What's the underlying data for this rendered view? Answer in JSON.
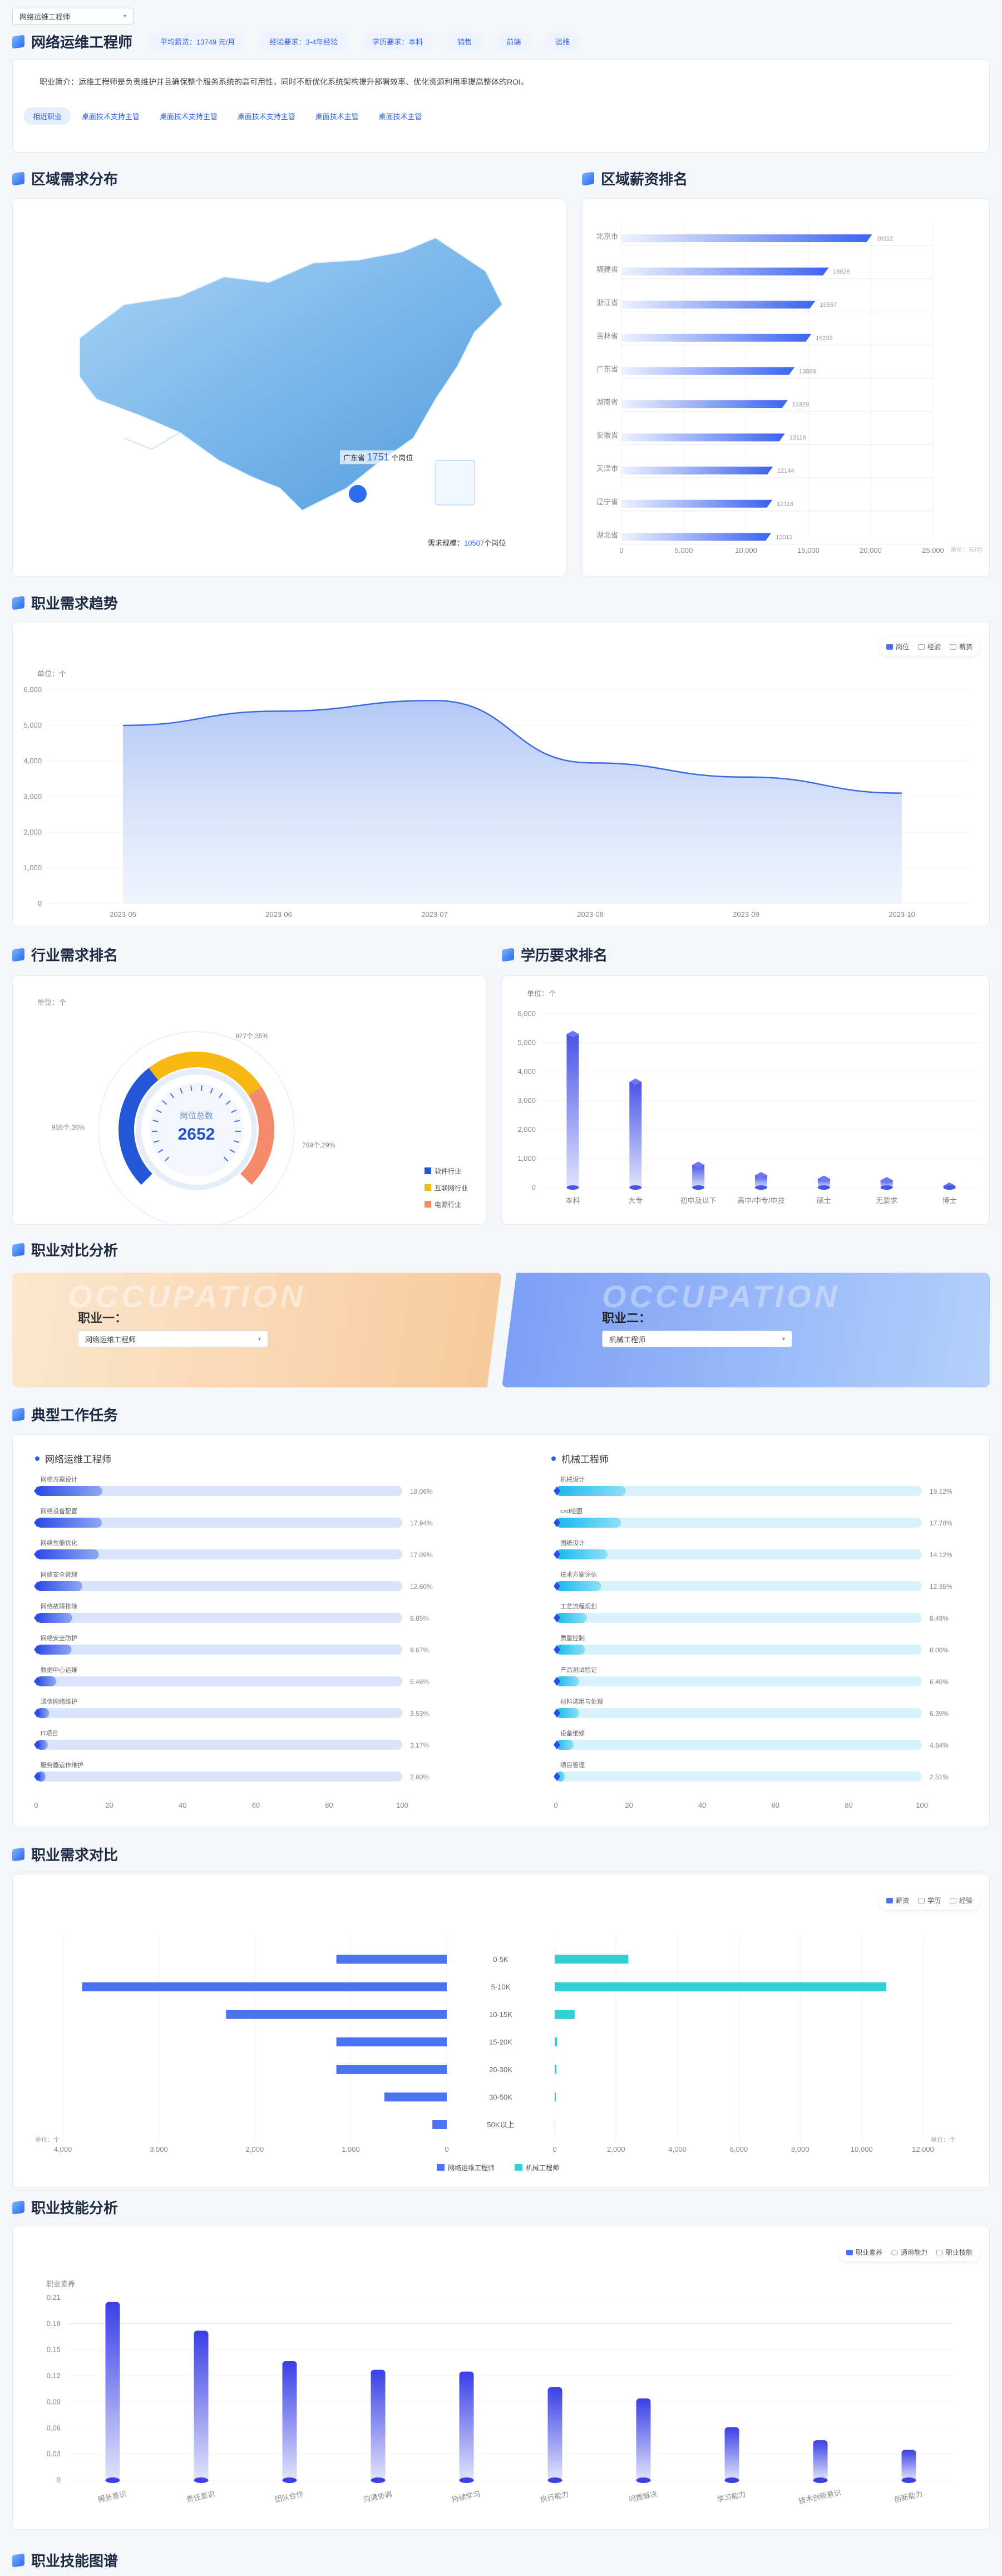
{
  "header": {
    "job_select": "网络运维工程师",
    "title": "网络运维工程师",
    "tags": [
      "平均薪资：13749 元/月",
      "经验要求：3-4年经验",
      "学历要求：本科",
      "销售",
      "前端",
      "运维"
    ],
    "intro": "职业简介：运维工程师是负责维护并且确保整个服务系统的高可用性，同时不断优化系统架构提升部署效率、优化资源利用率提高整体的ROI。",
    "chips": [
      "相近职业",
      "桌面技术支持主管",
      "桌面技术支持主管",
      "桌面技术支持主管",
      "桌面技术主管",
      "桌面技术主管"
    ]
  },
  "region": {
    "title": "区域需求分布",
    "tooltip_prefix": "广东省",
    "tooltip_value": "1751",
    "tooltip_suffix": "个岗位",
    "demand_label": "需求规模：",
    "demand_value": "10507",
    "demand_unit": "个岗位"
  },
  "salary_rank": {
    "title": "区域薪资排名",
    "unit_label": "单位：元/月",
    "chart_data": {
      "type": "bar",
      "categories": [
        "北京市",
        "福建省",
        "浙江省",
        "吉林省",
        "广东省",
        "湖南省",
        "安徽省",
        "天津市",
        "辽宁省",
        "湖北省"
      ],
      "values": [
        20112,
        16626,
        15557,
        15233,
        13888,
        13329,
        13116,
        12144,
        12116,
        12013
      ],
      "xlim": [
        0,
        25000
      ],
      "xticks": [
        "0",
        "5,000",
        "10,000",
        "15,000",
        "20,000",
        "25,000"
      ]
    }
  },
  "trend": {
    "title": "职业需求趋势",
    "unit_label": "单位：个",
    "legend": [
      "岗位",
      "经验",
      "薪资"
    ],
    "chart_data": {
      "type": "area",
      "x": [
        "2023-05",
        "2023-06",
        "2023-07",
        "2023-08",
        "2023-09",
        "2023-10"
      ],
      "values": [
        5000,
        5400,
        5700,
        3950,
        3550,
        3100
      ],
      "ylim": [
        0,
        6000
      ],
      "yticks": [
        "0",
        "1,000",
        "2,000",
        "3,000",
        "4,000",
        "5,000",
        "6,000"
      ]
    }
  },
  "industry": {
    "title": "行业需求排名",
    "unit_label": "单位：个",
    "center_label": "岗位总数",
    "center_value": "2652",
    "callouts": [
      "927个,35%",
      "769个,29%",
      "956个,36%"
    ],
    "legend": [
      "软件行业",
      "互联网行业",
      "电源行业"
    ],
    "colors": [
      "#2456d8",
      "#f8b814",
      "#f58a6b"
    ],
    "chart_data": {
      "type": "pie",
      "categories": [
        "软件行业",
        "互联网行业",
        "电源行业"
      ],
      "values": [
        956,
        927,
        769
      ],
      "percent": [
        36,
        35,
        29
      ]
    }
  },
  "education": {
    "title": "学历要求排名",
    "unit_label": "单位：个",
    "chart_data": {
      "type": "bar",
      "categories": [
        "本科",
        "大专",
        "初中及以下",
        "高中/中专/中技",
        "硕士",
        "无要求",
        "博士"
      ],
      "values": [
        5300,
        3650,
        780,
        420,
        300,
        250,
        60
      ],
      "ylim": [
        0,
        6000
      ],
      "yticks": [
        "0",
        "1,000",
        "2,000",
        "3,000",
        "4,000",
        "5,000",
        "6,000"
      ]
    }
  },
  "compare": {
    "title": "职业对比分析",
    "left_label": "职业一：",
    "left_value": "网络运维工程师",
    "right_label": "职业二：",
    "right_value": "机械工程师",
    "watermark": "OCCUPATION"
  },
  "tasks": {
    "title": "典型工作任务",
    "left_name": "网络运维工程师",
    "right_name": "机械工程师",
    "xticks": [
      "0",
      "20",
      "40",
      "60",
      "80",
      "100"
    ],
    "left": [
      {
        "label": "网络方案设计",
        "value": 18.06,
        "text": "18.06%"
      },
      {
        "label": "网络设备配置",
        "value": 17.94,
        "text": "17.94%"
      },
      {
        "label": "网络性能优化",
        "value": 17.09,
        "text": "17.09%"
      },
      {
        "label": "网络安全管理",
        "value": 12.6,
        "text": "12.60%"
      },
      {
        "label": "网络故障排除",
        "value": 9.85,
        "text": "9.85%"
      },
      {
        "label": "网络安全防护",
        "value": 9.67,
        "text": "9.67%"
      },
      {
        "label": "数据中心运维",
        "value": 5.46,
        "text": "5.46%"
      },
      {
        "label": "通信网络维护",
        "value": 3.53,
        "text": "3.53%"
      },
      {
        "label": "IT项目",
        "value": 3.17,
        "text": "3.17%"
      },
      {
        "label": "服务器运作维护",
        "value": 2.6,
        "text": "2.60%"
      }
    ],
    "right": [
      {
        "label": "机械设计",
        "value": 19.12,
        "text": "19.12%"
      },
      {
        "label": "cad绘图",
        "value": 17.78,
        "text": "17.78%"
      },
      {
        "label": "图纸设计",
        "value": 14.12,
        "text": "14.12%"
      },
      {
        "label": "技术方案评估",
        "value": 12.35,
        "text": "12.35%"
      },
      {
        "label": "工艺流程规划",
        "value": 8.49,
        "text": "8.49%"
      },
      {
        "label": "质量控制",
        "value": 8.0,
        "text": "8.00%"
      },
      {
        "label": "产品测试验证",
        "value": 6.4,
        "text": "6.40%"
      },
      {
        "label": "材料选用与处理",
        "value": 6.39,
        "text": "6.39%"
      },
      {
        "label": "设备维修",
        "value": 4.84,
        "text": "4.84%"
      },
      {
        "label": "项目管理",
        "value": 2.51,
        "text": "2.51%"
      }
    ]
  },
  "demand_compare": {
    "title": "职业需求对比",
    "legend_top": [
      "薪资",
      "学历",
      "经验"
    ],
    "unit_label": "单位：个",
    "legend_bottom": [
      "网络运维工程师",
      "机械工程师"
    ],
    "colors": [
      "#4b72f0",
      "#33d0d6"
    ],
    "chart_data": {
      "type": "bar",
      "categories": [
        "0-5K",
        "5-10K",
        "10-15K",
        "15-20K",
        "20-30K",
        "30-50K",
        "50K以上"
      ],
      "series": [
        {
          "name": "网络运维工程师",
          "values": [
            1150,
            3800,
            2300,
            1150,
            1150,
            650,
            150
          ]
        },
        {
          "name": "机械工程师",
          "values": [
            2400,
            10800,
            650,
            80,
            60,
            40,
            10
          ]
        }
      ],
      "left_xticks": [
        "4,000",
        "3,000",
        "2,000",
        "1,000",
        "0"
      ],
      "right_xticks": [
        "0",
        "2,000",
        "4,000",
        "6,000",
        "8,000",
        "10,000",
        "12,000"
      ]
    }
  },
  "skills": {
    "title": "职业技能分析",
    "legend": [
      "职业素养",
      "通用能力",
      "职业技能"
    ],
    "unit_label": "职业素养",
    "chart_data": {
      "type": "bar",
      "categories": [
        "服务意识",
        "责任意识",
        "团队合作",
        "沟通协调",
        "持续学习",
        "执行能力",
        "问题解决",
        "学习能力",
        "技术创新意识",
        "创新能力"
      ],
      "values": [
        0.205,
        0.172,
        0.137,
        0.127,
        0.125,
        0.107,
        0.094,
        0.061,
        0.046,
        0.035
      ],
      "ylim": [
        0,
        0.21
      ],
      "yticks": [
        "0",
        "0.03",
        "0.06",
        "0.09",
        "0.12",
        "0.15",
        "0.18",
        "0.21"
      ]
    }
  },
  "skill_map": {
    "title": "职业技能图谱"
  }
}
